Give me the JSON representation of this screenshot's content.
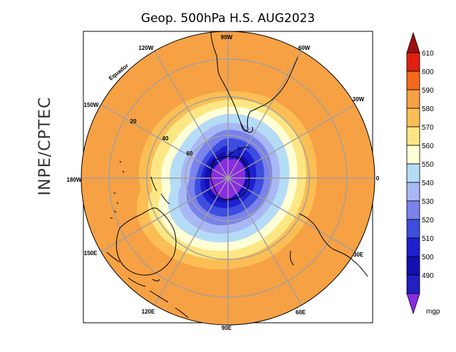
{
  "title": "Geop. 500hPa H.S. AUG2023",
  "side_label": "INPE/CPTEC",
  "units": "mgp",
  "equator_label": "Equador",
  "longitude_labels": {
    "top": "90W",
    "upper_left": "120W",
    "upper_right": "60W",
    "left_upper": "150W",
    "right_upper": "30W",
    "left": "180W",
    "right": "0",
    "left_lower": "150E",
    "right_lower": "30E",
    "lower_left": "120E",
    "lower_right": "60E",
    "bottom": "90E"
  },
  "latitude_labels": [
    "20",
    "40",
    "60"
  ],
  "colorbar": {
    "levels": [
      "610",
      "600",
      "590",
      "580",
      "570",
      "560",
      "550",
      "540",
      "530",
      "520",
      "510",
      "500",
      "490"
    ],
    "colors": [
      "#a01010",
      "#e02010",
      "#f56a1a",
      "#f7a145",
      "#fbbe55",
      "#fde784",
      "#ffffd6",
      "#b5dcf7",
      "#a8b8f5",
      "#7a82ec",
      "#3c4de0",
      "#1f1fd0",
      "#1010b0",
      "#8a2be2"
    ]
  },
  "chart_data": {
    "type": "heatmap",
    "variable": "Geop. 500hPa",
    "period": "AUG2023",
    "units": "mgp",
    "contour_levels": [
      490,
      500,
      510,
      520,
      530,
      540,
      550,
      560,
      570,
      580,
      590,
      600,
      610
    ]
  }
}
